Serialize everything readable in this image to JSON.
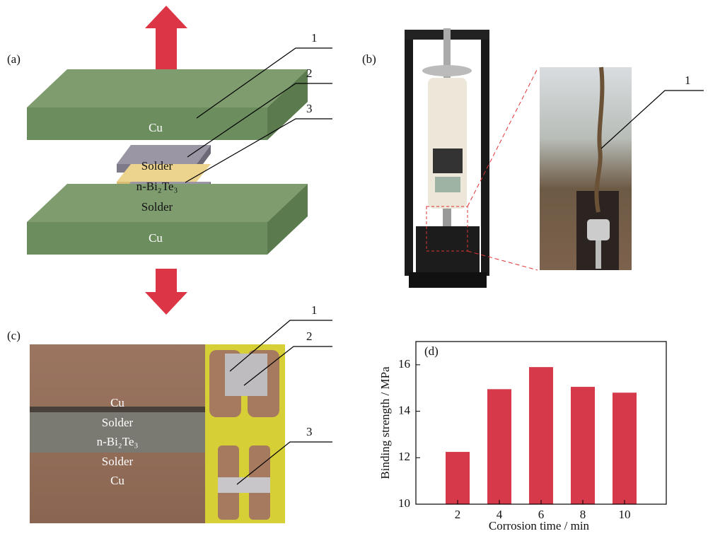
{
  "panel_a": {
    "label": "(a)",
    "plate_top": "Cu",
    "solder_top": "Solder",
    "thermo": "n-Bi₂Te₃",
    "solder_bottom": "Solder",
    "plate_bottom": "Cu",
    "callouts": [
      "1",
      "2",
      "3"
    ]
  },
  "panel_b": {
    "label": "(b)",
    "callouts": [
      "1"
    ]
  },
  "panel_c": {
    "label": "(c)",
    "layers": [
      "Cu",
      "Solder",
      "n-Bi₂Te₃",
      "Solder",
      "Cu"
    ],
    "callouts": [
      "1",
      "2",
      "3"
    ]
  },
  "chart_data": {
    "type": "bar",
    "label": "(d)",
    "x_label": "Corrosion time / min",
    "y_label": "Binding strength / MPa",
    "x": [
      2,
      4,
      6,
      8,
      10
    ],
    "values": [
      12.25,
      14.95,
      15.9,
      15.05,
      14.8
    ],
    "color": "#d6394a",
    "xlim": [
      0,
      12
    ],
    "xticks": [
      2,
      4,
      6,
      8,
      10
    ],
    "ylim": [
      10,
      17
    ],
    "yticks": [
      10,
      12,
      14,
      16
    ]
  }
}
